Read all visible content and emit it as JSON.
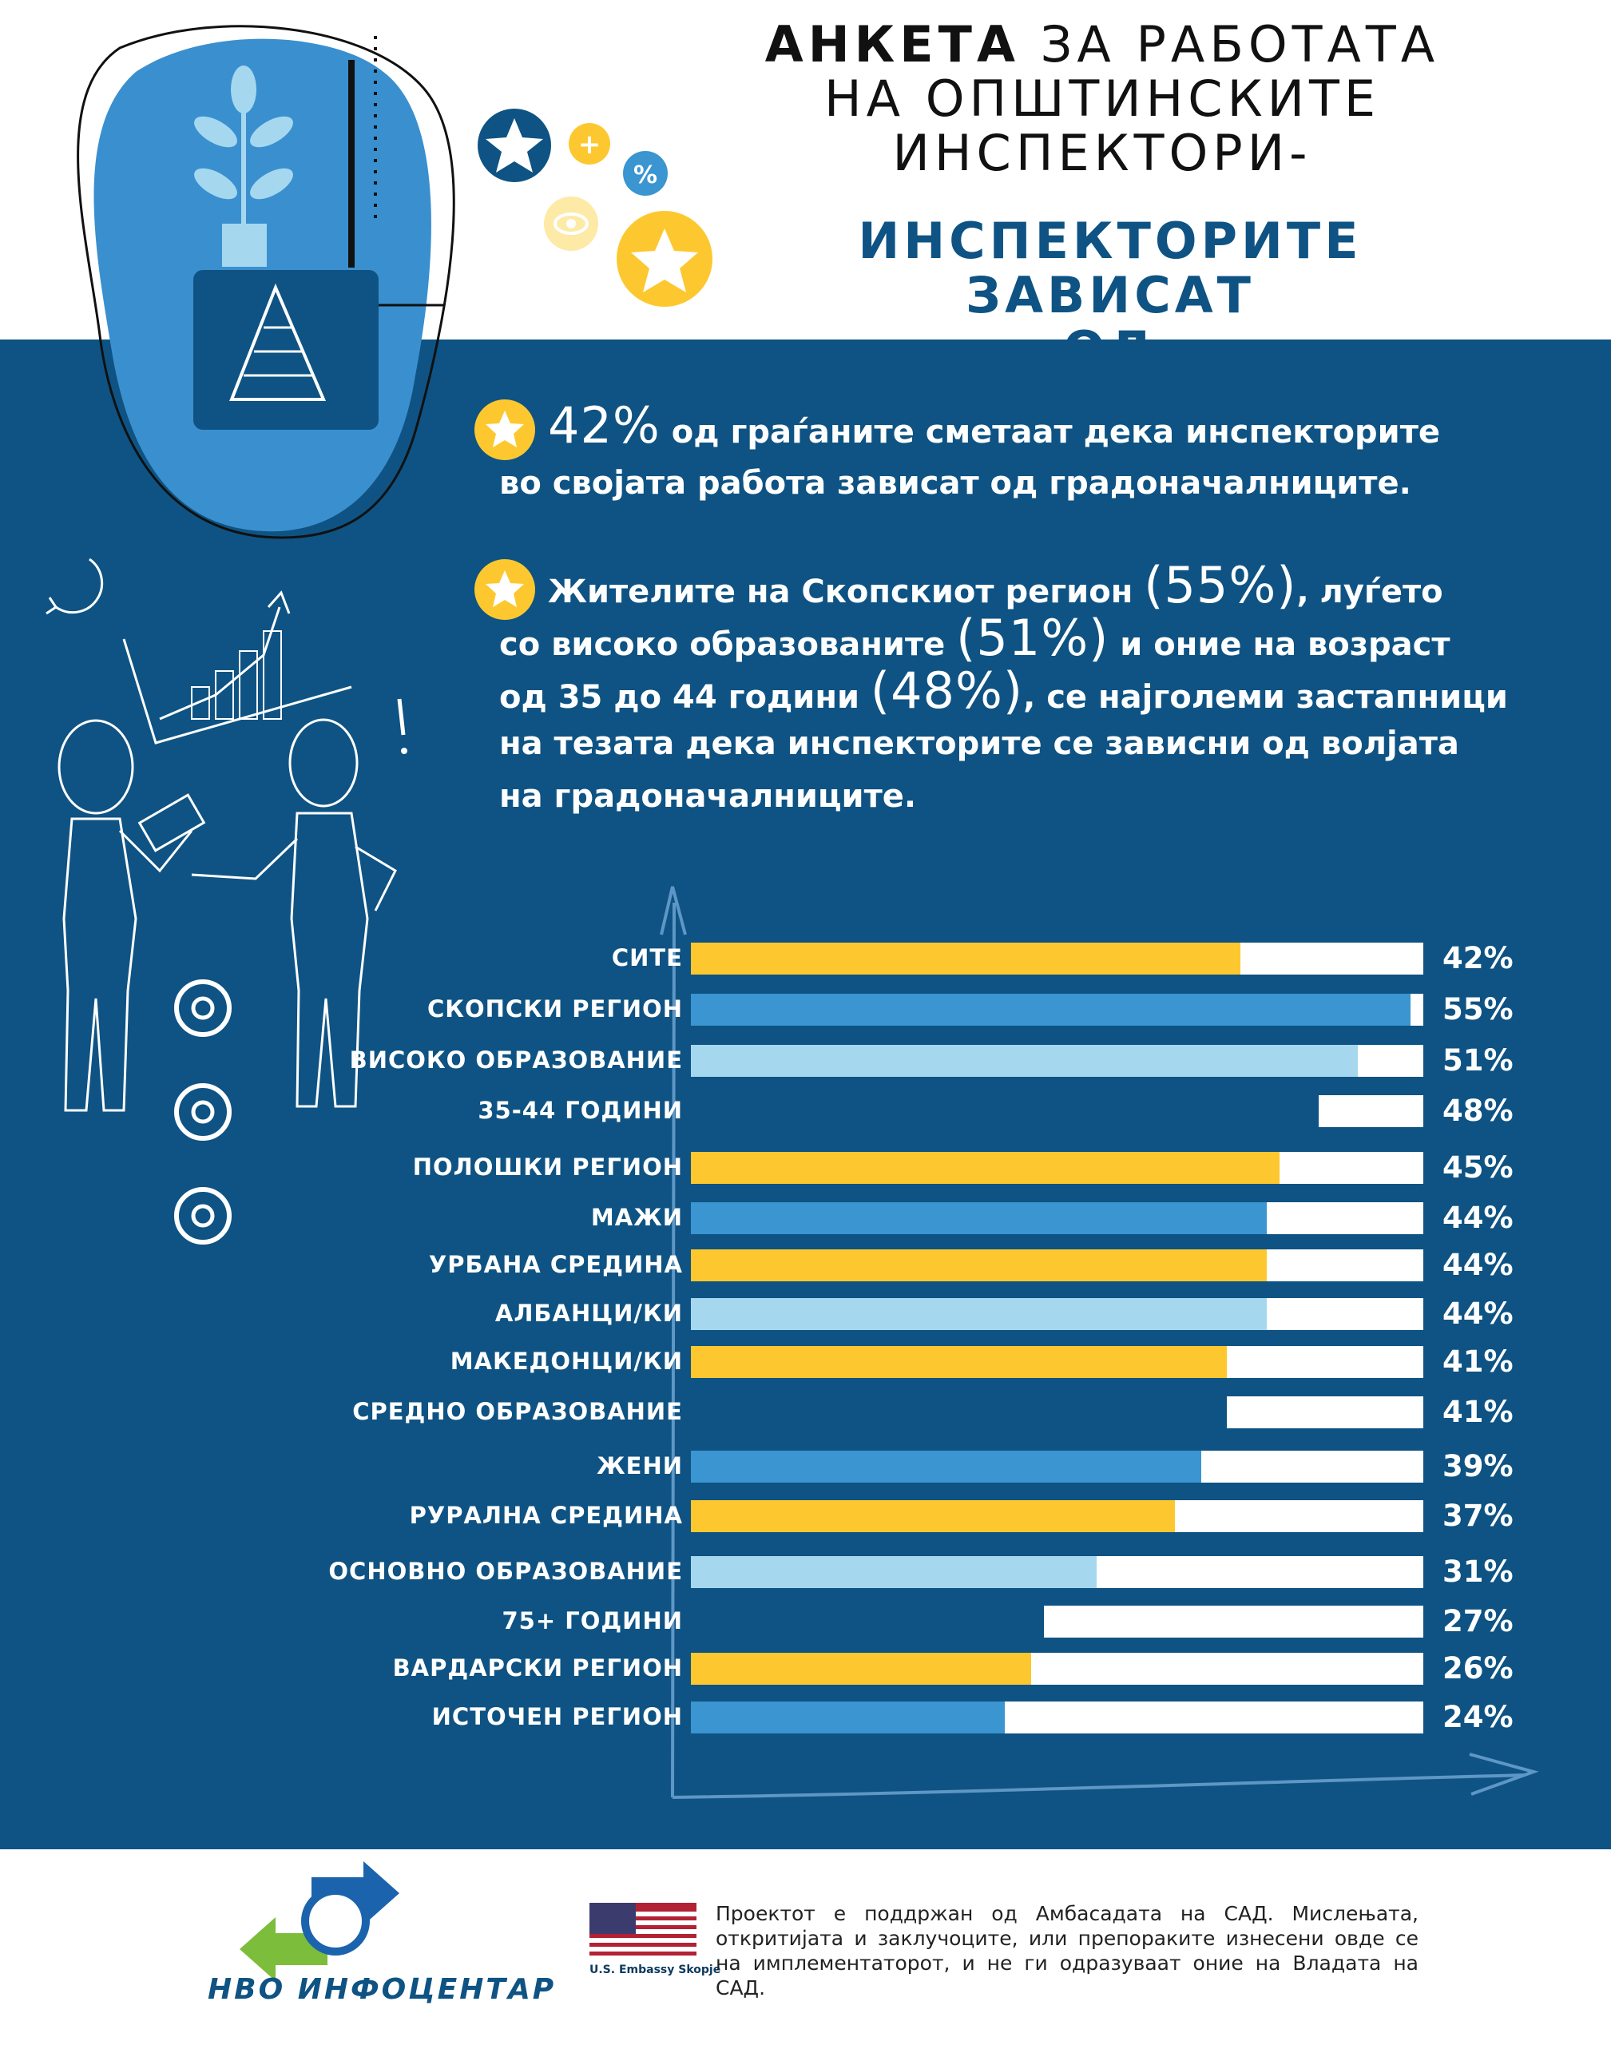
{
  "header": {
    "title_bold": "АНКЕТА",
    "title_rest": " ЗА РАБОТАТА",
    "title_line2": "НА ОПШТИНСКИТЕ",
    "title_line3": "ИНСПЕКТОРИ-",
    "subtitle_line1": "ИНСПЕКТОРИТЕ ЗАВИСАТ",
    "subtitle_line2": "ОД ГРАДОНАЧАЛНИЦИТЕ"
  },
  "findings": {
    "first": {
      "value": "42%",
      "text1": " од граѓаните сметаат дека инспекторите",
      "text2": "во својата работа зависат од градоначалниците."
    },
    "second": {
      "line1_a": "Жителите на Скопскиот регион ",
      "line1_val": "(55%)",
      "line1_b": ", луѓето",
      "line2_a": "со високо образованите ",
      "line2_val": "(51%)",
      "line2_b": " и оние на возраст",
      "line3_a": "од 35 до 44 години ",
      "line3_val": "(48%)",
      "line3_b": ", се најголеми застапници",
      "line4": "на тезата дека инспекторите се зависни од волјата",
      "line5": "на градоначалниците."
    }
  },
  "colors": {
    "yellow": "#fdc82f",
    "blue": "#3a95d0",
    "light_blue": "#a5d8ef",
    "navy": "#0e5383",
    "white": "#ffffff"
  },
  "chart_data": {
    "type": "bar",
    "orientation": "horizontal",
    "categories": [
      "СИТЕ",
      "СКОПСКИ РЕГИОН",
      "ВИСОКО ОБРАЗОВАНИЕ",
      "35-44 ГОДИНИ",
      "ПОЛОШКИ РЕГИОН",
      "МАЖИ",
      "УРБАНА СРЕДИНА",
      "АЛБАНЦИ/КИ",
      "МАКЕДОНЦИ/КИ",
      "СРЕДНО ОБРАЗОВАНИЕ",
      "ЖЕНИ",
      "РУРАЛНА СРЕДИНА",
      "ОСНОВНО ОБРАЗОВАНИЕ",
      "75+ ГОДИНИ",
      "ВАРДАРСКИ РЕГИОН",
      "ИСТОЧЕН РЕГИОН"
    ],
    "values": [
      42,
      55,
      51,
      48,
      45,
      44,
      44,
      44,
      41,
      41,
      39,
      37,
      31,
      27,
      26,
      24
    ],
    "value_labels": [
      "42%",
      "55%",
      "51%",
      "48%",
      "45%",
      "44%",
      "44%",
      "44%",
      "41%",
      "41%",
      "39%",
      "37%",
      "31%",
      "27%",
      "26%",
      "24%"
    ],
    "bar_colors": [
      "yellow",
      "blue",
      "light_blue",
      "navy",
      "yellow",
      "blue",
      "yellow",
      "light_blue",
      "yellow",
      "navy",
      "blue",
      "yellow",
      "light_blue",
      "navy",
      "yellow",
      "blue"
    ],
    "title": "",
    "xlabel": "",
    "ylabel": "",
    "grid": false,
    "legend": false
  },
  "footer": {
    "org_name": "НВО ИНФОЦЕНТАР",
    "embassy_label": "U.S. Embassy Skopje",
    "disclaimer": "Проектот е поддржан од Амбасадата на САД. Мислењата, откритијата и заклучоците, или препораките изнесени овде се на имплементаторот, и не ги одразуваат оние на Владата на САД."
  }
}
